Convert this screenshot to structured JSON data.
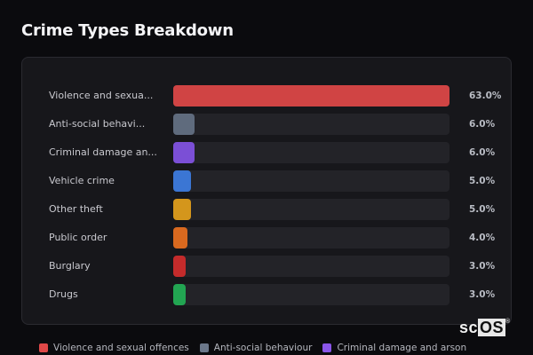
{
  "header": {
    "title": "Crime Types Breakdown"
  },
  "chart_data": {
    "type": "bar",
    "orientation": "horizontal",
    "title": "Crime Types Breakdown",
    "categories": [
      "Violence and sexual offences",
      "Anti-social behaviour",
      "Criminal damage and arson",
      "Vehicle crime",
      "Other theft",
      "Public order",
      "Burglary",
      "Drugs"
    ],
    "display_labels": [
      "Violence and sexua...",
      "Anti-social behavi...",
      "Criminal damage an...",
      "Vehicle crime",
      "Other theft",
      "Public order",
      "Burglary",
      "Drugs"
    ],
    "values": [
      63.0,
      6.0,
      6.0,
      5.0,
      5.0,
      4.0,
      3.0,
      3.0
    ],
    "value_labels": [
      "63.0%",
      "6.0%",
      "6.0%",
      "5.0%",
      "5.0%",
      "4.0%",
      "3.0%",
      "3.0%"
    ],
    "colors": [
      "#d04444",
      "#5f6b7d",
      "#7b4fd6",
      "#3b76d4",
      "#d4961c",
      "#d9691f",
      "#c42b2b",
      "#22a552"
    ],
    "xlabel": "",
    "ylabel": "",
    "unit": "%",
    "legend_position": "bottom",
    "grid": false
  },
  "legend": {
    "items": [
      {
        "label": "Violence and sexual offences",
        "color": "#e04848"
      },
      {
        "label": "Anti-social behaviour",
        "color": "#6b778a"
      },
      {
        "label": "Criminal damage and arson",
        "color": "#8a55e8"
      }
    ]
  },
  "watermark": {
    "sc": "sc",
    "os": "OS",
    "mark": "®"
  }
}
